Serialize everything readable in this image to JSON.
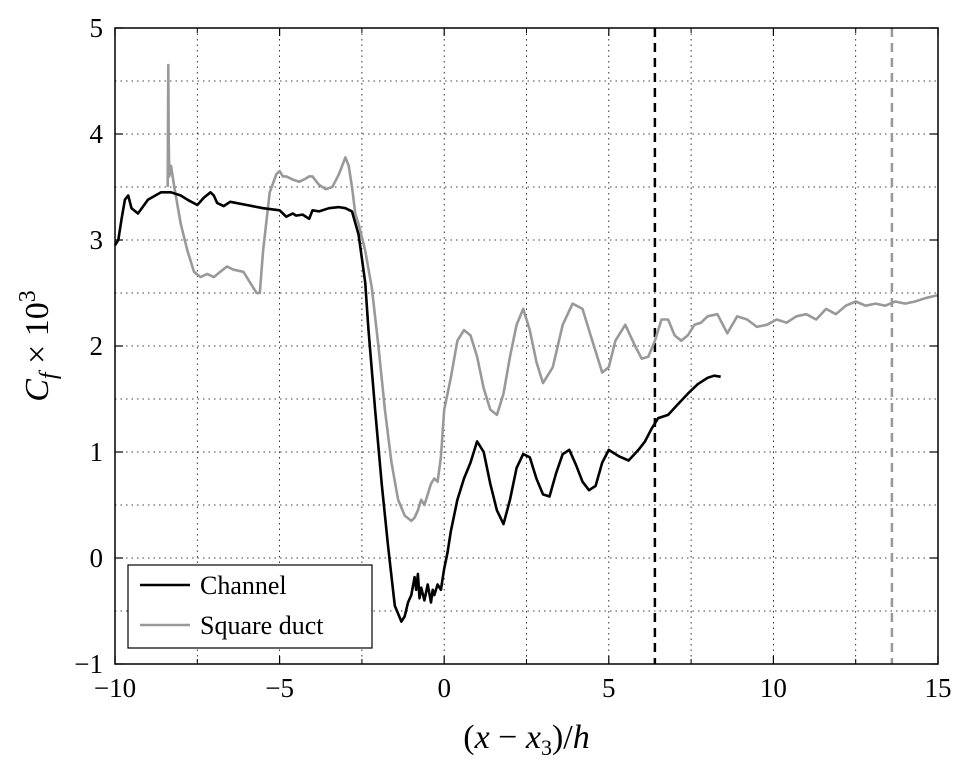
{
  "chart_data": {
    "type": "line",
    "xlabel": "(x − x3)/h",
    "ylabel": "Cf × 10^3",
    "xlim": [
      -10,
      15
    ],
    "ylim": [
      -1,
      5
    ],
    "xticks": [
      -10,
      -5,
      0,
      5,
      10,
      15
    ],
    "yticks": [
      -1,
      0,
      1,
      2,
      3,
      4,
      5
    ],
    "xtick_labels": [
      "−10",
      "−5",
      "0",
      "5",
      "10",
      "15"
    ],
    "ytick_labels": [
      "−1",
      "0",
      "1",
      "2",
      "3",
      "4",
      "5"
    ],
    "grid": true,
    "legend_position": "bottom-left",
    "colors": {
      "channel": "#000000",
      "square_duct": "#999999"
    },
    "vertical_markers": [
      {
        "x": 6.4,
        "series": "Channel",
        "style": "dashed"
      },
      {
        "x": 13.6,
        "series": "Square duct",
        "style": "dashed"
      }
    ],
    "series": [
      {
        "name": "Channel",
        "x": [
          -10,
          -9.9,
          -9.8,
          -9.7,
          -9.6,
          -9.5,
          -9.3,
          -9.0,
          -8.6,
          -8.3,
          -8.0,
          -7.8,
          -7.5,
          -7.3,
          -7.1,
          -7.0,
          -6.9,
          -6.7,
          -6.5,
          -6.0,
          -5.5,
          -5.0,
          -4.8,
          -4.6,
          -4.5,
          -4.3,
          -4.1,
          -4.0,
          -3.8,
          -3.5,
          -3.2,
          -3.0,
          -2.8,
          -2.6,
          -2.4,
          -2.3,
          -2.1,
          -1.9,
          -1.7,
          -1.5,
          -1.3,
          -1.2,
          -1.1,
          -1.0,
          -0.9,
          -0.85,
          -0.8,
          -0.75,
          -0.7,
          -0.6,
          -0.5,
          -0.4,
          -0.35,
          -0.3,
          -0.2,
          -0.1,
          0,
          0.1,
          0.2,
          0.4,
          0.6,
          0.8,
          1.0,
          1.2,
          1.4,
          1.6,
          1.8,
          2.0,
          2.2,
          2.4,
          2.6,
          2.8,
          3.0,
          3.2,
          3.4,
          3.6,
          3.8,
          4.0,
          4.2,
          4.4,
          4.6,
          4.8,
          5.0,
          5.3,
          5.6,
          5.9,
          6.1,
          6.3,
          6.5,
          6.8,
          7.1,
          7.4,
          7.7,
          8.0,
          8.2,
          8.4
        ],
        "values": [
          2.95,
          3.0,
          3.2,
          3.38,
          3.42,
          3.3,
          3.25,
          3.38,
          3.45,
          3.45,
          3.42,
          3.38,
          3.33,
          3.4,
          3.45,
          3.42,
          3.35,
          3.32,
          3.36,
          3.33,
          3.3,
          3.28,
          3.22,
          3.25,
          3.23,
          3.24,
          3.2,
          3.28,
          3.27,
          3.3,
          3.31,
          3.3,
          3.27,
          3.05,
          2.6,
          2.15,
          1.4,
          0.7,
          0.1,
          -0.45,
          -0.6,
          -0.55,
          -0.42,
          -0.35,
          -0.18,
          -0.3,
          -0.15,
          -0.38,
          -0.28,
          -0.4,
          -0.25,
          -0.42,
          -0.3,
          -0.35,
          -0.25,
          -0.3,
          -0.1,
          0.05,
          0.25,
          0.55,
          0.75,
          0.9,
          1.1,
          1.0,
          0.7,
          0.45,
          0.32,
          0.55,
          0.85,
          0.98,
          0.95,
          0.75,
          0.6,
          0.58,
          0.8,
          0.98,
          1.02,
          0.88,
          0.72,
          0.64,
          0.68,
          0.9,
          1.02,
          0.96,
          0.92,
          1.02,
          1.1,
          1.22,
          1.32,
          1.35,
          1.45,
          1.55,
          1.64,
          1.7,
          1.72,
          1.71
        ]
      },
      {
        "name": "Square duct",
        "x": [
          -8.4,
          -8.38,
          -8.37,
          -8.35,
          -8.3,
          -8.2,
          -8.0,
          -7.8,
          -7.6,
          -7.4,
          -7.2,
          -7.0,
          -6.8,
          -6.6,
          -6.4,
          -6.1,
          -5.9,
          -5.7,
          -5.6,
          -5.5,
          -5.3,
          -5.1,
          -5.0,
          -4.9,
          -4.8,
          -4.6,
          -4.4,
          -4.2,
          -4.1,
          -4.0,
          -3.8,
          -3.6,
          -3.4,
          -3.2,
          -3.0,
          -2.9,
          -2.8,
          -2.7,
          -2.6,
          -2.4,
          -2.2,
          -2.0,
          -1.8,
          -1.6,
          -1.4,
          -1.2,
          -1.0,
          -0.9,
          -0.8,
          -0.7,
          -0.6,
          -0.4,
          -0.3,
          -0.2,
          -0.1,
          0,
          0.2,
          0.4,
          0.6,
          0.8,
          1.0,
          1.2,
          1.4,
          1.6,
          1.8,
          2.0,
          2.2,
          2.4,
          2.6,
          2.8,
          3.0,
          3.3,
          3.6,
          3.9,
          4.2,
          4.5,
          4.8,
          5.0,
          5.2,
          5.5,
          5.8,
          6.0,
          6.2,
          6.4,
          6.6,
          6.8,
          7.0,
          7.2,
          7.4,
          7.6,
          7.8,
          8.0,
          8.3,
          8.6,
          8.9,
          9.2,
          9.5,
          9.8,
          10.1,
          10.4,
          10.7,
          11.0,
          11.3,
          11.6,
          11.9,
          12.2,
          12.5,
          12.8,
          13.1,
          13.4,
          13.7,
          14.0,
          14.3,
          14.6,
          15.0
        ],
        "values": [
          3.5,
          4.65,
          3.95,
          3.6,
          3.7,
          3.5,
          3.15,
          2.9,
          2.7,
          2.65,
          2.68,
          2.65,
          2.7,
          2.75,
          2.72,
          2.7,
          2.6,
          2.5,
          2.5,
          2.9,
          3.45,
          3.62,
          3.65,
          3.6,
          3.6,
          3.57,
          3.55,
          3.58,
          3.6,
          3.6,
          3.52,
          3.48,
          3.5,
          3.62,
          3.78,
          3.7,
          3.5,
          3.25,
          3.15,
          2.9,
          2.55,
          2.0,
          1.4,
          0.9,
          0.55,
          0.4,
          0.35,
          0.38,
          0.45,
          0.55,
          0.5,
          0.7,
          0.75,
          0.72,
          0.95,
          1.4,
          1.7,
          2.05,
          2.15,
          2.1,
          1.9,
          1.6,
          1.4,
          1.35,
          1.55,
          1.9,
          2.2,
          2.35,
          2.15,
          1.85,
          1.65,
          1.8,
          2.2,
          2.4,
          2.35,
          2.05,
          1.75,
          1.8,
          2.05,
          2.2,
          2.0,
          1.88,
          1.9,
          2.05,
          2.25,
          2.25,
          2.1,
          2.05,
          2.1,
          2.2,
          2.22,
          2.28,
          2.3,
          2.12,
          2.28,
          2.25,
          2.18,
          2.2,
          2.25,
          2.22,
          2.28,
          2.3,
          2.25,
          2.35,
          2.3,
          2.38,
          2.42,
          2.38,
          2.4,
          2.38,
          2.42,
          2.4,
          2.42,
          2.45,
          2.48
        ]
      }
    ]
  }
}
